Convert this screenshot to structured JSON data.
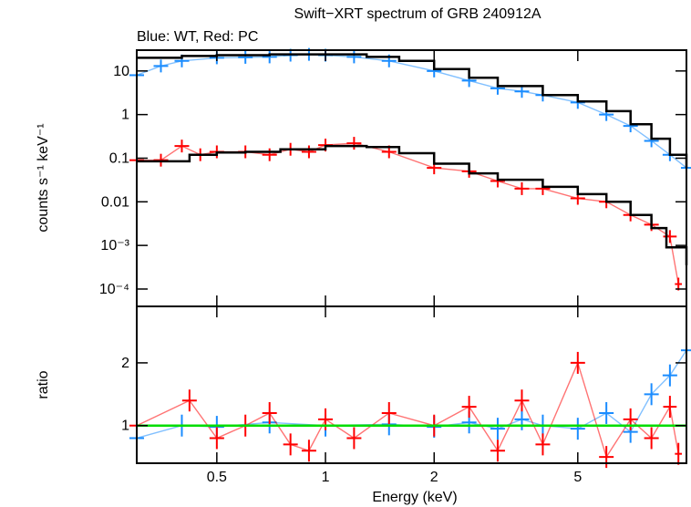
{
  "chart_data": [
    {
      "type": "scatter",
      "title": "Swift−XRT spectrum of GRB 240912A",
      "subtitle": "Blue: WT, Red: PC",
      "xlabel": "",
      "ylabel": "counts s⁻¹ keV⁻¹",
      "xscale": "log",
      "yscale": "log",
      "xlim": [
        0.3,
        10
      ],
      "ylim": [
        4e-05,
        30
      ],
      "yticks": [
        {
          "value": 10,
          "label": "10"
        },
        {
          "value": 1,
          "label": "1"
        },
        {
          "value": 0.1,
          "label": "0.1"
        },
        {
          "value": 0.01,
          "label": "0.01"
        },
        {
          "value": 0.001,
          "label": "10⁻³"
        },
        {
          "value": 0.0001,
          "label": "10⁻⁴"
        }
      ],
      "series": [
        {
          "color": "#1a8cff",
          "x": [
            0.3,
            0.35,
            0.4,
            0.5,
            0.6,
            0.7,
            0.8,
            0.9,
            1.0,
            1.2,
            1.5,
            2.0,
            2.5,
            3.0,
            3.5,
            4.0,
            5.0,
            6.0,
            7.0,
            8.0,
            9.0,
            10.0
          ],
          "y": [
            8,
            13,
            17,
            20,
            20.5,
            21,
            23,
            24,
            23,
            21,
            17,
            10,
            6,
            4,
            3.4,
            2.8,
            1.9,
            1.0,
            0.55,
            0.25,
            0.12,
            0.06
          ]
        },
        {
          "color": "#ff0000",
          "x": [
            0.3,
            0.35,
            0.4,
            0.45,
            0.5,
            0.6,
            0.7,
            0.8,
            0.9,
            1.0,
            1.2,
            1.5,
            2.0,
            2.5,
            3.0,
            3.5,
            4.0,
            5.0,
            6.0,
            7.0,
            8.0,
            9.0,
            9.5
          ],
          "y": [
            0.09,
            0.09,
            0.19,
            0.12,
            0.14,
            0.14,
            0.12,
            0.16,
            0.14,
            0.2,
            0.22,
            0.14,
            0.06,
            0.05,
            0.03,
            0.02,
            0.02,
            0.012,
            0.01,
            0.005,
            0.003,
            0.0016,
            0.00013
          ]
        },
        {
          "color": "#000000",
          "style": "model-step",
          "x": [
            0.3,
            0.4,
            0.5,
            0.7,
            1.0,
            1.3,
            1.6,
            2.0,
            2.5,
            3.0,
            4.0,
            5.0,
            6.0,
            7.0,
            8.0,
            9.0,
            10.0
          ],
          "y": [
            20,
            22,
            23,
            24,
            24,
            21,
            17,
            11,
            7,
            4.5,
            2.8,
            2.0,
            1.2,
            0.6,
            0.28,
            0.12,
            0.06
          ]
        },
        {
          "color": "#000000",
          "style": "model-step",
          "x": [
            0.3,
            0.38,
            0.42,
            0.5,
            0.6,
            0.75,
            1.0,
            1.3,
            1.6,
            2.0,
            2.5,
            3.0,
            4.0,
            5.0,
            6.0,
            7.0,
            8.0,
            8.8,
            10.0
          ],
          "y": [
            0.085,
            0.085,
            0.12,
            0.135,
            0.14,
            0.16,
            0.19,
            0.18,
            0.13,
            0.075,
            0.045,
            0.032,
            0.022,
            0.015,
            0.01,
            0.005,
            0.0025,
            0.0009,
            0.00035
          ]
        }
      ]
    },
    {
      "type": "scatter",
      "title": "",
      "xlabel": "Energy (keV)",
      "ylabel": "ratio",
      "xscale": "log",
      "xlim": [
        0.3,
        10
      ],
      "ylim": [
        0.4,
        2.9
      ],
      "xticks": [
        {
          "value": 0.5,
          "label": "0.5"
        },
        {
          "value": 1,
          "label": "1"
        },
        {
          "value": 2,
          "label": "2"
        },
        {
          "value": 5,
          "label": "5"
        }
      ],
      "yticks": [
        {
          "value": 1,
          "label": "1"
        },
        {
          "value": 2,
          "label": "2"
        }
      ],
      "reference_line": {
        "y": 1,
        "color": "#00dd00"
      },
      "series": [
        {
          "color": "#1a8cff",
          "x": [
            0.3,
            0.4,
            0.5,
            0.7,
            1.0,
            1.5,
            2.0,
            2.5,
            3.0,
            3.5,
            4.0,
            5.0,
            6.0,
            7.0,
            8.0,
            9.0,
            10.0
          ],
          "y": [
            0.8,
            1.0,
            0.98,
            1.05,
            1.0,
            1.02,
            0.98,
            1.05,
            0.95,
            1.1,
            1.0,
            0.95,
            1.2,
            0.9,
            1.5,
            1.8,
            2.2
          ]
        },
        {
          "color": "#ff0000",
          "x": [
            0.3,
            0.42,
            0.5,
            0.6,
            0.7,
            0.8,
            0.9,
            1.0,
            1.2,
            1.5,
            2.0,
            2.5,
            3.0,
            3.5,
            4.0,
            5.0,
            6.0,
            7.0,
            8.0,
            9.0,
            9.5
          ],
          "y": [
            1.0,
            1.4,
            0.8,
            1.0,
            1.2,
            0.7,
            0.6,
            1.1,
            0.8,
            1.2,
            1.0,
            1.3,
            0.6,
            1.4,
            0.7,
            2.0,
            0.5,
            1.1,
            0.8,
            1.3,
            0.55
          ]
        }
      ]
    }
  ]
}
